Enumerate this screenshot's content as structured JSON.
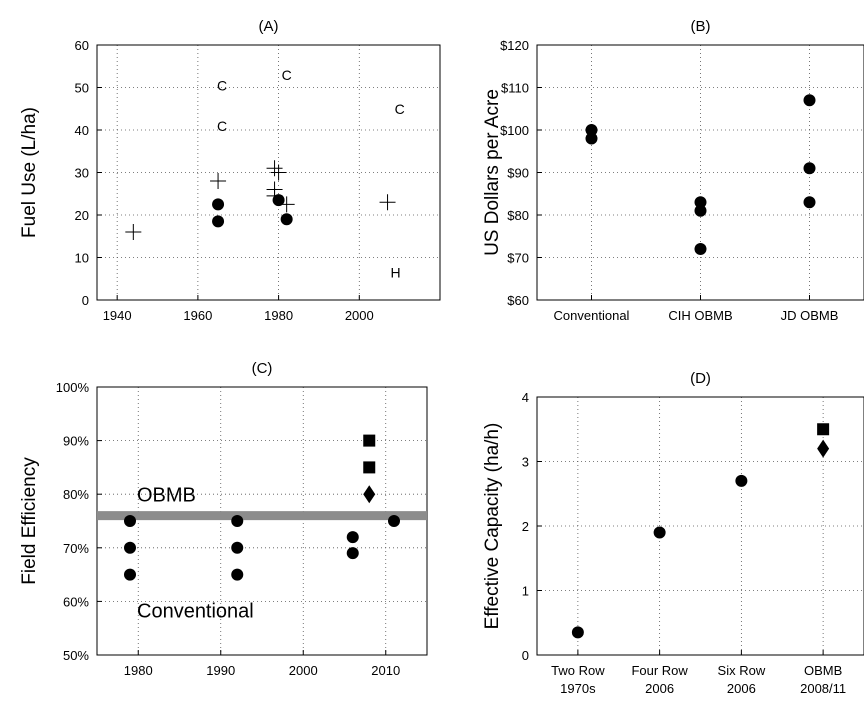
{
  "chart_data": [
    {
      "id": "A",
      "type": "scatter",
      "title": "(A)",
      "ylabel": "Fuel Use (L/ha)",
      "xlim": [
        1935,
        2020
      ],
      "ylim": [
        0,
        60
      ],
      "xticks": [
        1940,
        1960,
        1980,
        2000
      ],
      "yticks": [
        0,
        10,
        20,
        30,
        40,
        50,
        60
      ],
      "grid": true,
      "series": [
        {
          "marker": "dot",
          "points": [
            [
              1965,
              22.5
            ],
            [
              1965,
              18.5
            ],
            [
              1980,
              23.5
            ],
            [
              1982,
              19
            ]
          ]
        },
        {
          "marker": "plus",
          "points": [
            [
              1944,
              16
            ],
            [
              1965,
              28
            ],
            [
              1979,
              31
            ],
            [
              1980,
              30
            ],
            [
              1979,
              26
            ],
            [
              1979,
              24.5
            ],
            [
              1982,
              22.5
            ],
            [
              2007,
              23
            ]
          ]
        },
        {
          "marker": "text",
          "points": [
            [
              1966,
              50.5,
              "C"
            ],
            [
              1966,
              41,
              "C"
            ],
            [
              1982,
              53,
              "C"
            ],
            [
              2010,
              45,
              "C"
            ],
            [
              2009,
              6.5,
              "H"
            ]
          ]
        }
      ]
    },
    {
      "id": "B",
      "type": "scatter",
      "title": "(B)",
      "ylabel": "US Dollars per Acre",
      "categories": [
        "Conventional",
        "CIH OBMB",
        "JD OBMB"
      ],
      "ylim": [
        60,
        120
      ],
      "yticks": [
        "$60",
        "$70",
        "$80",
        "$90",
        "$100",
        "$110",
        "$120"
      ],
      "grid": true,
      "series": [
        {
          "marker": "dot",
          "points": [
            [
              0,
              100
            ],
            [
              0,
              98
            ],
            [
              1,
              83
            ],
            [
              1,
              81
            ],
            [
              1,
              72
            ],
            [
              2,
              107
            ],
            [
              2,
              91
            ],
            [
              2,
              83
            ]
          ]
        }
      ]
    },
    {
      "id": "C",
      "type": "scatter",
      "title": "(C)",
      "ylabel": "Field Efficiency",
      "xlim": [
        1975,
        2015
      ],
      "ylim": [
        50,
        100
      ],
      "xticks": [
        1980,
        1990,
        2000,
        2010
      ],
      "yticks": [
        "50%",
        "60%",
        "70%",
        "80%",
        "90%",
        "100%"
      ],
      "grid": true,
      "threshold": 76,
      "threshold_color": "#8c8c8c",
      "annotations": [
        "OBMB",
        "Conventional"
      ],
      "series": [
        {
          "marker": "dot",
          "points": [
            [
              1979,
              75
            ],
            [
              1979,
              70
            ],
            [
              1979,
              65
            ],
            [
              1992,
              75
            ],
            [
              1992,
              70
            ],
            [
              1992,
              65
            ],
            [
              2006,
              72
            ],
            [
              2006,
              69
            ],
            [
              2011,
              75
            ]
          ]
        },
        {
          "marker": "square",
          "points": [
            [
              2008,
              90
            ],
            [
              2008,
              85
            ]
          ]
        },
        {
          "marker": "diamond",
          "points": [
            [
              2008,
              80
            ]
          ]
        }
      ]
    },
    {
      "id": "D",
      "type": "scatter",
      "title": "(D)",
      "ylabel": "Effective Capacity (ha/h)",
      "categories": [
        [
          "Two Row",
          "1970s"
        ],
        [
          "Four Row",
          "2006"
        ],
        [
          "Six Row",
          "2006"
        ],
        [
          "OBMB",
          "2008/11"
        ]
      ],
      "ylim": [
        0,
        4
      ],
      "yticks": [
        "0",
        "1",
        "2",
        "3",
        "4"
      ],
      "grid": true,
      "series": [
        {
          "marker": "dot",
          "points": [
            [
              0,
              0.35
            ],
            [
              1,
              1.9
            ],
            [
              2,
              2.7
            ]
          ]
        },
        {
          "marker": "square",
          "points": [
            [
              3,
              3.5
            ]
          ]
        },
        {
          "marker": "diamond",
          "points": [
            [
              3,
              3.2
            ]
          ]
        }
      ]
    }
  ]
}
